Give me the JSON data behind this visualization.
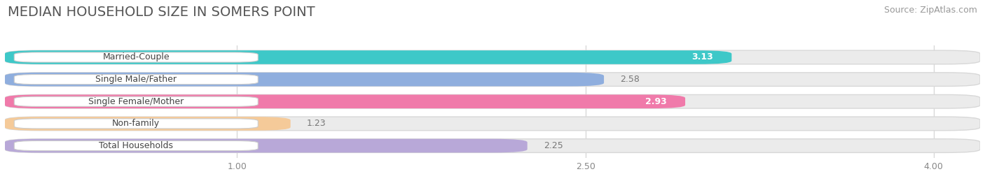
{
  "title": "MEDIAN HOUSEHOLD SIZE IN SOMERS POINT",
  "source": "Source: ZipAtlas.com",
  "categories": [
    "Married-Couple",
    "Single Male/Father",
    "Single Female/Mother",
    "Non-family",
    "Total Households"
  ],
  "values": [
    3.13,
    2.58,
    2.93,
    1.23,
    2.25
  ],
  "bar_colors": [
    "#3ec8c8",
    "#8faede",
    "#f07aaa",
    "#f5ca99",
    "#b8a8d8"
  ],
  "value_label_inside": [
    true,
    false,
    true,
    false,
    false
  ],
  "xlim_start": 0.0,
  "xlim_end": 4.2,
  "xticks": [
    1.0,
    2.5,
    4.0
  ],
  "title_fontsize": 14,
  "source_fontsize": 9,
  "bar_label_fontsize": 9,
  "category_fontsize": 9,
  "bar_height": 0.62,
  "background_color": "#ffffff",
  "bar_bg_color": "#ebebeb",
  "grid_color": "#d8d8d8",
  "label_box_color": "#ffffff",
  "tick_color": "#888888",
  "value_inside_color": "#ffffff",
  "value_outside_color": "#777777",
  "title_color": "#555555",
  "source_color": "#999999"
}
